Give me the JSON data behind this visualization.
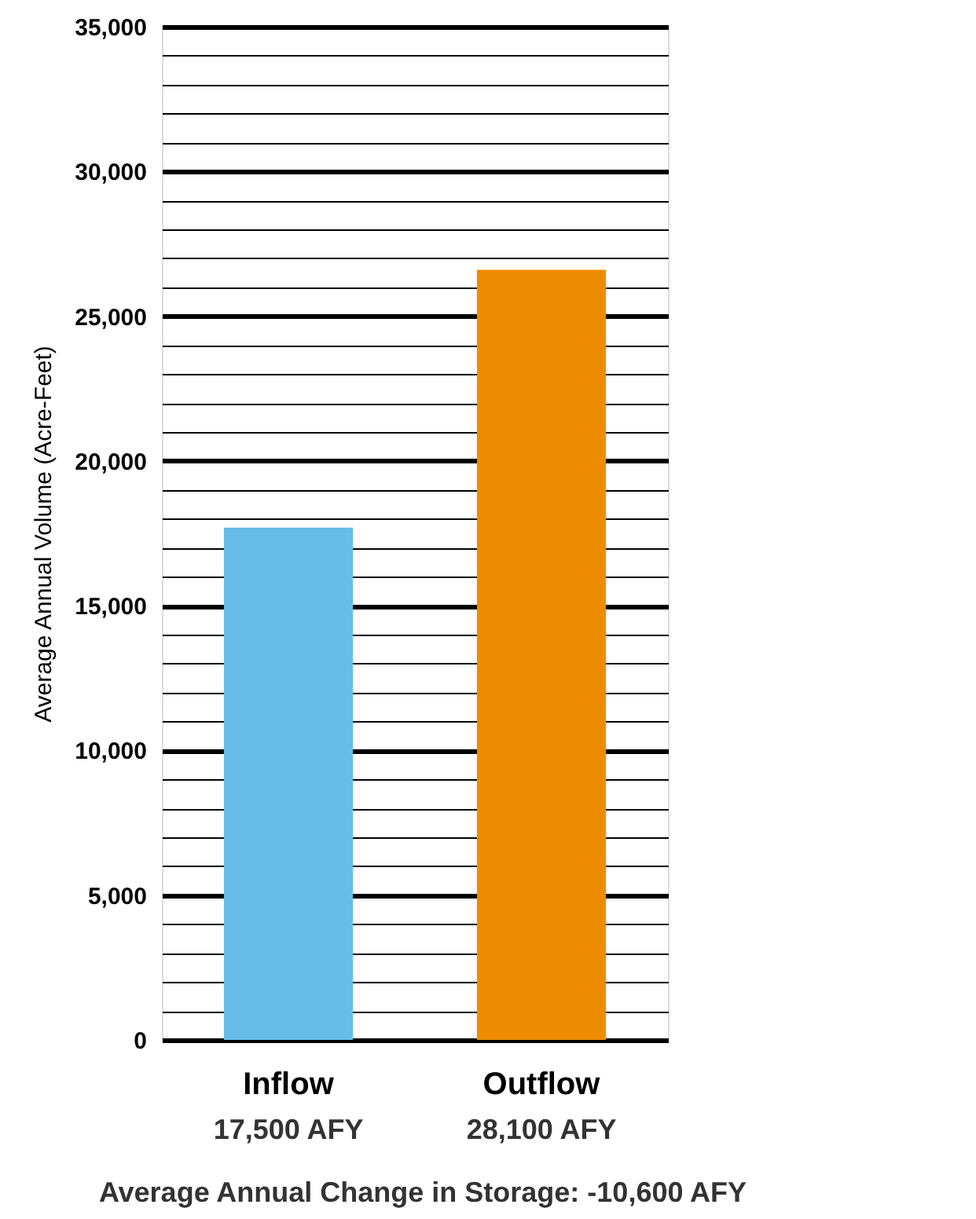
{
  "chart_data": {
    "type": "bar",
    "ylabel": "Average Annual Volume (Acre-Feet)",
    "categories": [
      "Inflow",
      "Outflow"
    ],
    "colors": [
      "#67bde8",
      "#ee8c00"
    ],
    "values": [
      17700,
      26600
    ],
    "ylim": [
      0,
      35000
    ],
    "yticks": [
      "0",
      {
        "value": 1000,
        "label": null
      },
      {
        "value": 2000,
        "label": null
      },
      {
        "value": 3000,
        "label": null
      },
      {
        "value": 4000,
        "label": null
      },
      {
        "value": 5000,
        "label": "5,000"
      },
      {
        "value": 6000,
        "label": null
      },
      {
        "value": 7000,
        "label": null
      },
      {
        "value": 8000,
        "label": null
      },
      {
        "value": 9000,
        "label": null
      },
      {
        "value": 10000,
        "label": "10,000"
      },
      {
        "value": 11000,
        "label": null
      },
      {
        "value": 12000,
        "label": null
      },
      {
        "value": 13000,
        "label": null
      },
      {
        "value": 14000,
        "label": null
      },
      {
        "value": 15000,
        "label": "15,000"
      },
      {
        "value": 16000,
        "label": null
      },
      {
        "value": 17000,
        "label": null
      },
      {
        "value": 18000,
        "label": null
      },
      {
        "value": 19000,
        "label": null
      },
      {
        "value": 20000,
        "label": "20,000"
      },
      {
        "value": 21000,
        "label": null
      },
      {
        "value": 22000,
        "label": null
      },
      {
        "value": 23000,
        "label": null
      },
      {
        "value": 24000,
        "label": null
      },
      {
        "value": 25000,
        "label": "25,000"
      },
      {
        "value": 26000,
        "label": null
      },
      {
        "value": 27000,
        "label": null
      },
      {
        "value": 28000,
        "label": null
      },
      {
        "value": 29000,
        "label": null
      },
      {
        "value": 30000,
        "label": "30,000"
      },
      {
        "value": 31000,
        "label": null
      },
      {
        "value": 32000,
        "label": null
      },
      {
        "value": 33000,
        "label": null
      },
      {
        "value": 34000,
        "label": null
      },
      {
        "value": 35000,
        "label": "35,000"
      }
    ],
    "grid": true,
    "annotations": [
      "17,500 AFY",
      "28,100 AFY",
      "Average Annual Change in Storage: -10,600 AFY"
    ]
  }
}
